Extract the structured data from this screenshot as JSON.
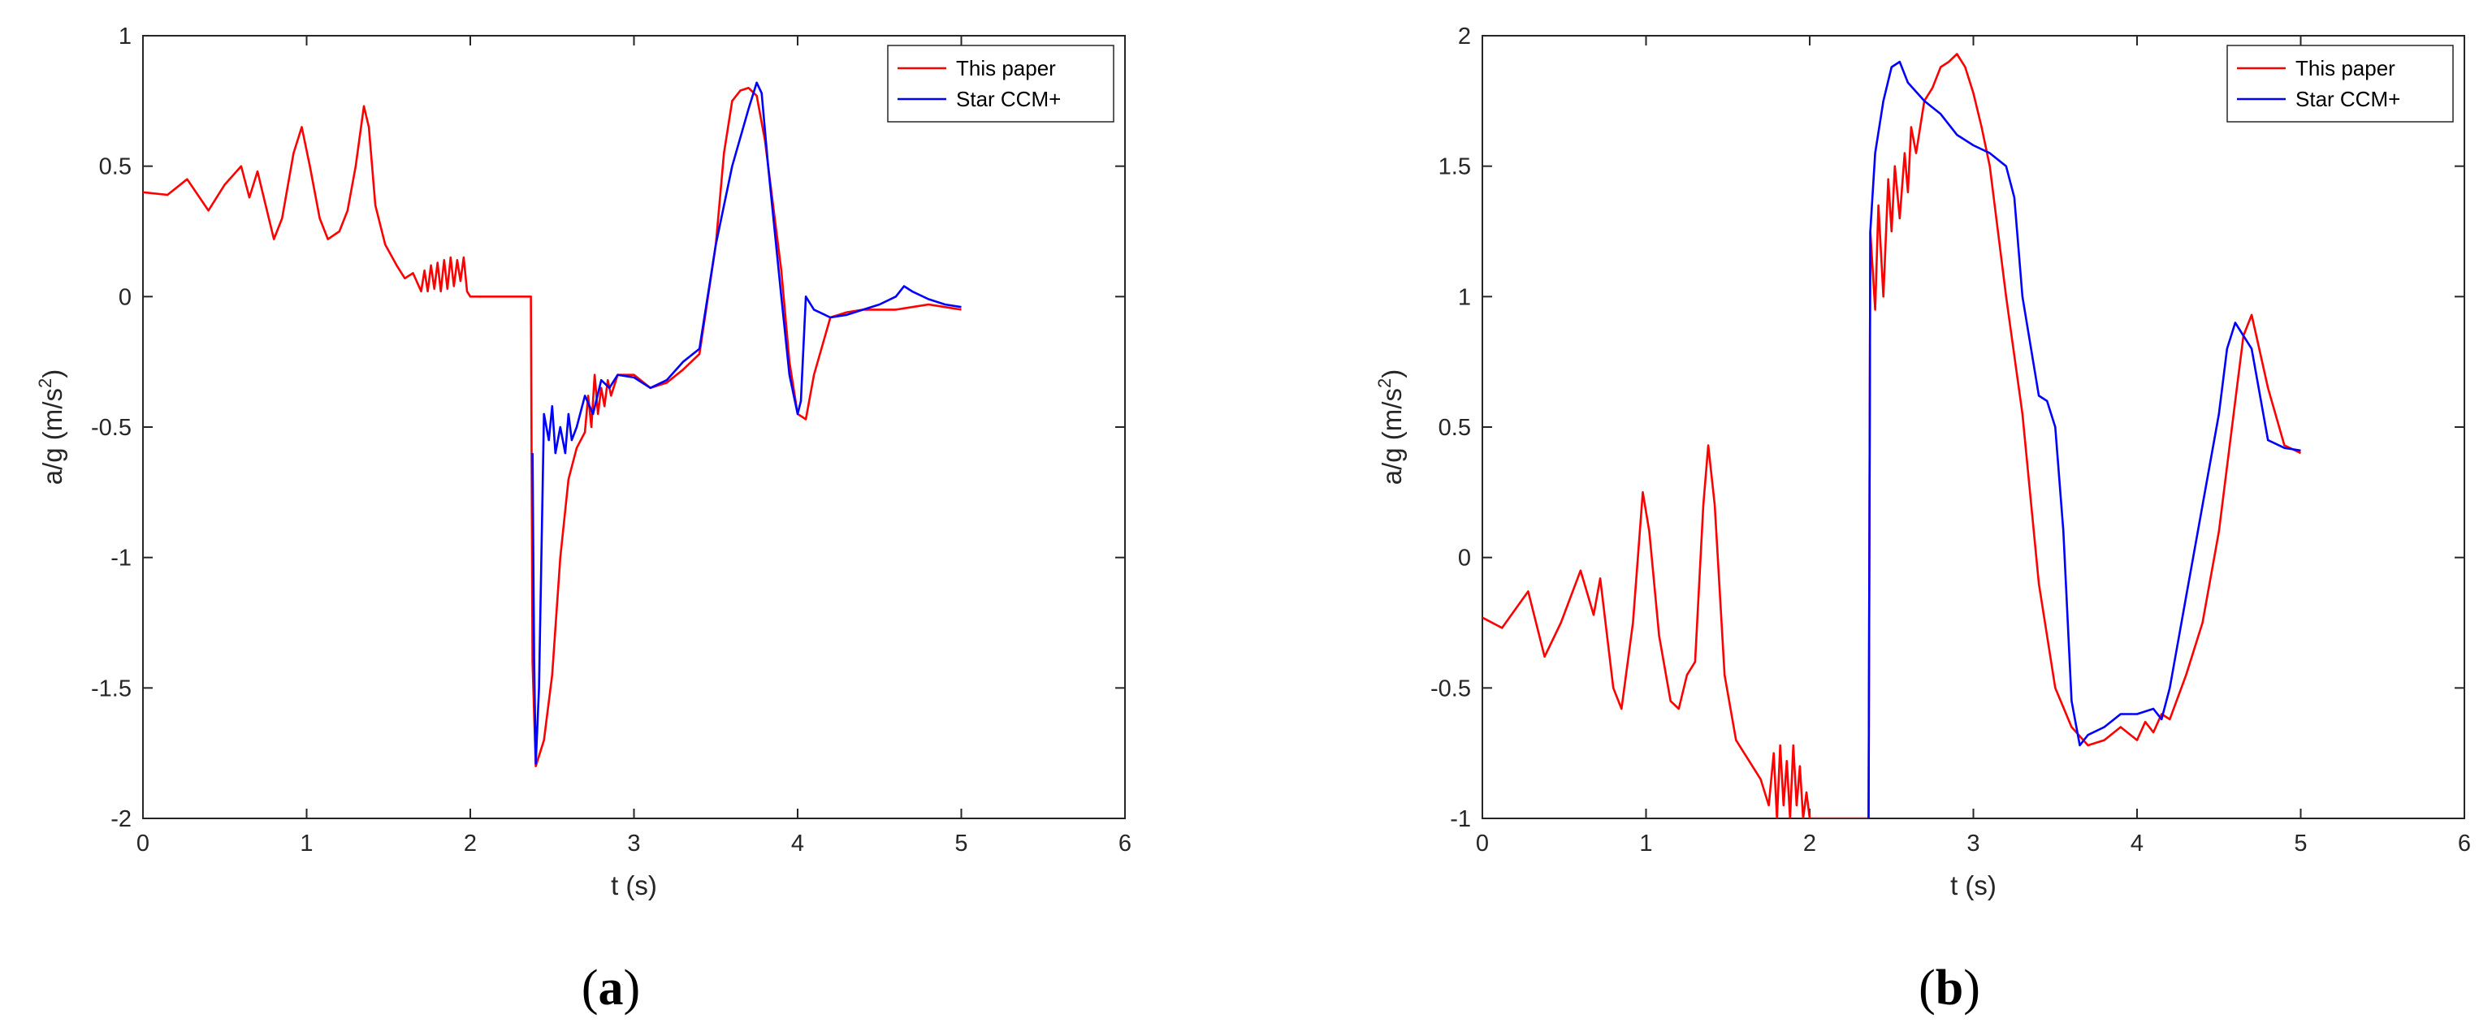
{
  "chart_data": [
    {
      "type": "line",
      "panel_label_open": "(",
      "panel_label_letter": "a",
      "panel_label_close": ")",
      "xlabel": "t (s)",
      "ylabel_prefix": "a/g (m/s",
      "ylabel_sup": "2",
      "ylabel_suffix": ")",
      "xlim": [
        0,
        6
      ],
      "ylim": [
        -2,
        1
      ],
      "xticks": [
        0,
        1,
        2,
        3,
        4,
        5,
        6
      ],
      "yticks": [
        -2,
        -1.5,
        -1,
        -0.5,
        0,
        0.5,
        1
      ],
      "xtick_labels": [
        "0",
        "1",
        "2",
        "3",
        "4",
        "5",
        "6"
      ],
      "ytick_labels": [
        "-2",
        "-1.5",
        "-1",
        "-0.5",
        "0",
        "0.5",
        "1"
      ],
      "grid": false,
      "legend_position": "top-right",
      "series": [
        {
          "name": "This paper",
          "color": "#ff0000",
          "x": [
            0,
            0.15,
            0.27,
            0.4,
            0.5,
            0.6,
            0.65,
            0.7,
            0.75,
            0.8,
            0.85,
            0.92,
            0.97,
            1.02,
            1.08,
            1.13,
            1.2,
            1.25,
            1.3,
            1.35,
            1.38,
            1.42,
            1.48,
            1.55,
            1.6,
            1.65,
            1.7,
            1.72,
            1.74,
            1.76,
            1.78,
            1.8,
            1.82,
            1.84,
            1.86,
            1.88,
            1.9,
            1.92,
            1.94,
            1.96,
            1.98,
            2.0,
            2.05,
            2.3,
            2.37,
            2.38,
            2.4,
            2.45,
            2.5,
            2.55,
            2.6,
            2.65,
            2.7,
            2.72,
            2.74,
            2.76,
            2.78,
            2.8,
            2.82,
            2.84,
            2.86,
            2.9,
            3.0,
            3.1,
            3.2,
            3.3,
            3.4,
            3.5,
            3.55,
            3.6,
            3.65,
            3.7,
            3.75,
            3.8,
            3.85,
            3.9,
            3.95,
            4.0,
            4.05,
            4.1,
            4.2,
            4.3,
            4.4,
            4.5,
            4.6,
            4.7,
            4.8,
            4.9,
            5.0
          ],
          "y": [
            0.4,
            0.39,
            0.45,
            0.33,
            0.43,
            0.5,
            0.38,
            0.48,
            0.35,
            0.22,
            0.3,
            0.55,
            0.65,
            0.5,
            0.3,
            0.22,
            0.25,
            0.33,
            0.5,
            0.73,
            0.65,
            0.35,
            0.2,
            0.12,
            0.07,
            0.09,
            0.02,
            0.1,
            0.02,
            0.12,
            0.03,
            0.13,
            0.02,
            0.14,
            0.03,
            0.15,
            0.04,
            0.14,
            0.06,
            0.15,
            0.02,
            0.0,
            0.0,
            0.0,
            0.0,
            -1.4,
            -1.8,
            -1.7,
            -1.45,
            -1.0,
            -0.7,
            -0.58,
            -0.52,
            -0.38,
            -0.5,
            -0.3,
            -0.45,
            -0.35,
            -0.42,
            -0.32,
            -0.38,
            -0.3,
            -0.3,
            -0.35,
            -0.33,
            -0.28,
            -0.22,
            0.2,
            0.55,
            0.75,
            0.79,
            0.8,
            0.77,
            0.6,
            0.35,
            0.1,
            -0.25,
            -0.45,
            -0.47,
            -0.3,
            -0.08,
            -0.06,
            -0.05,
            -0.05,
            -0.05,
            -0.04,
            -0.03,
            -0.04,
            -0.05
          ]
        },
        {
          "name": "Star CCM+",
          "color": "#0000ff",
          "x": [
            2.38,
            2.39,
            2.4,
            2.42,
            2.45,
            2.48,
            2.5,
            2.52,
            2.55,
            2.58,
            2.6,
            2.62,
            2.65,
            2.7,
            2.75,
            2.8,
            2.85,
            2.9,
            3.0,
            3.1,
            3.2,
            3.3,
            3.4,
            3.5,
            3.6,
            3.7,
            3.75,
            3.78,
            3.82,
            3.9,
            3.95,
            4.0,
            4.02,
            4.05,
            4.1,
            4.2,
            4.3,
            4.4,
            4.5,
            4.6,
            4.65,
            4.7,
            4.8,
            4.9,
            5.0
          ],
          "y": [
            -0.6,
            -1.4,
            -1.79,
            -1.5,
            -0.45,
            -0.55,
            -0.42,
            -0.6,
            -0.5,
            -0.6,
            -0.45,
            -0.55,
            -0.5,
            -0.38,
            -0.45,
            -0.32,
            -0.35,
            -0.3,
            -0.31,
            -0.35,
            -0.32,
            -0.25,
            -0.2,
            0.2,
            0.5,
            0.72,
            0.82,
            0.78,
            0.5,
            0.0,
            -0.3,
            -0.45,
            -0.4,
            0.0,
            -0.05,
            -0.08,
            -0.07,
            -0.05,
            -0.03,
            0.0,
            0.04,
            0.02,
            -0.01,
            -0.03,
            -0.04
          ]
        }
      ]
    },
    {
      "type": "line",
      "panel_label_open": "(",
      "panel_label_letter": "b",
      "panel_label_close": ")",
      "xlabel": "t (s)",
      "ylabel_prefix": "a/g (m/s",
      "ylabel_sup": "2",
      "ylabel_suffix": ")",
      "xlim": [
        0,
        6
      ],
      "ylim": [
        -1,
        2
      ],
      "xticks": [
        0,
        1,
        2,
        3,
        4,
        5,
        6
      ],
      "yticks": [
        -1,
        -0.5,
        0,
        0.5,
        1,
        1.5,
        2
      ],
      "xtick_labels": [
        "0",
        "1",
        "2",
        "3",
        "4",
        "5",
        "6"
      ],
      "ytick_labels": [
        "-1",
        "-0.5",
        "0",
        "0.5",
        "1",
        "1.5",
        "2"
      ],
      "grid": false,
      "legend_position": "top-right",
      "series": [
        {
          "name": "This paper",
          "color": "#ff0000",
          "x": [
            0,
            0.12,
            0.28,
            0.38,
            0.48,
            0.6,
            0.68,
            0.72,
            0.8,
            0.85,
            0.92,
            0.98,
            1.02,
            1.08,
            1.15,
            1.2,
            1.25,
            1.3,
            1.35,
            1.38,
            1.42,
            1.48,
            1.55,
            1.6,
            1.65,
            1.7,
            1.75,
            1.78,
            1.8,
            1.82,
            1.84,
            1.86,
            1.88,
            1.9,
            1.92,
            1.94,
            1.96,
            1.98,
            2.0,
            2.05,
            2.3,
            2.36,
            2.37,
            2.4,
            2.42,
            2.45,
            2.48,
            2.5,
            2.52,
            2.55,
            2.58,
            2.6,
            2.62,
            2.65,
            2.7,
            2.75,
            2.8,
            2.85,
            2.9,
            2.95,
            3.0,
            3.05,
            3.1,
            3.2,
            3.3,
            3.4,
            3.5,
            3.6,
            3.7,
            3.8,
            3.9,
            4.0,
            4.05,
            4.1,
            4.15,
            4.2,
            4.3,
            4.4,
            4.5,
            4.6,
            4.65,
            4.7,
            4.8,
            4.9,
            5.0
          ],
          "y": [
            -0.23,
            -0.27,
            -0.13,
            -0.38,
            -0.25,
            -0.05,
            -0.22,
            -0.08,
            -0.5,
            -0.58,
            -0.25,
            0.25,
            0.1,
            -0.3,
            -0.55,
            -0.58,
            -0.45,
            -0.4,
            0.2,
            0.43,
            0.2,
            -0.45,
            -0.7,
            -0.75,
            -0.8,
            -0.85,
            -0.95,
            -0.75,
            -1.0,
            -0.72,
            -0.95,
            -0.78,
            -1.0,
            -0.72,
            -0.95,
            -0.8,
            -1.0,
            -0.9,
            -1.0,
            -1.0,
            -1.0,
            -1.0,
            1.25,
            0.95,
            1.35,
            1.0,
            1.45,
            1.25,
            1.5,
            1.3,
            1.55,
            1.4,
            1.65,
            1.55,
            1.75,
            1.8,
            1.88,
            1.9,
            1.93,
            1.88,
            1.78,
            1.65,
            1.5,
            1.0,
            0.55,
            -0.1,
            -0.5,
            -0.65,
            -0.72,
            -0.7,
            -0.65,
            -0.7,
            -0.63,
            -0.67,
            -0.6,
            -0.62,
            -0.45,
            -0.25,
            0.1,
            0.6,
            0.85,
            0.93,
            0.65,
            0.43,
            0.4
          ]
        },
        {
          "name": "Star CCM+",
          "color": "#0000ff",
          "x": [
            2.36,
            2.37,
            2.4,
            2.45,
            2.5,
            2.55,
            2.6,
            2.7,
            2.8,
            2.9,
            3.0,
            3.1,
            3.2,
            3.25,
            3.3,
            3.4,
            3.45,
            3.5,
            3.55,
            3.6,
            3.65,
            3.7,
            3.8,
            3.9,
            4.0,
            4.1,
            4.15,
            4.2,
            4.3,
            4.4,
            4.5,
            4.55,
            4.6,
            4.7,
            4.8,
            4.9,
            5.0
          ],
          "y": [
            -1.0,
            1.25,
            1.55,
            1.75,
            1.88,
            1.9,
            1.82,
            1.75,
            1.7,
            1.62,
            1.58,
            1.55,
            1.5,
            1.38,
            1.0,
            0.62,
            0.6,
            0.5,
            0.1,
            -0.55,
            -0.72,
            -0.68,
            -0.65,
            -0.6,
            -0.6,
            -0.58,
            -0.62,
            -0.5,
            -0.15,
            0.2,
            0.55,
            0.8,
            0.9,
            0.8,
            0.45,
            0.42,
            0.41
          ]
        }
      ]
    }
  ]
}
